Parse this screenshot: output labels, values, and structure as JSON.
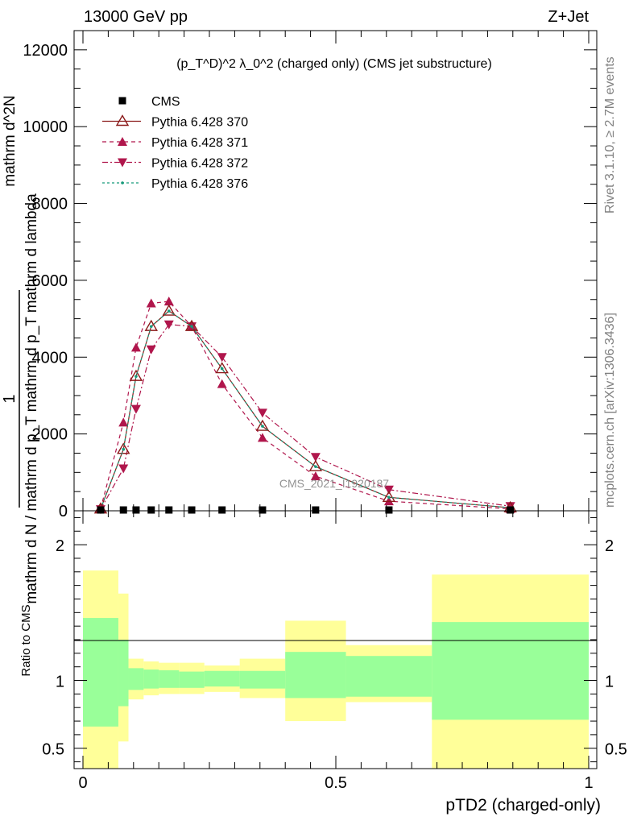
{
  "header": {
    "left": "13000 GeV pp",
    "right": "Z+Jet"
  },
  "side_labels": {
    "rivet": "Rivet 3.1.10, ≥ 2.7M events",
    "mcplots": "mcplots.cern.ch [arXiv:1306.3436]"
  },
  "watermark": "CMS_2021_I1920187",
  "chart_data": {
    "type": "line",
    "title": "(p_T^D)^2 λ_0^2 (charged only) (CMS jet substructure)",
    "xlabel": "pTD2 (charged-only)",
    "ylabel_parts": [
      "1",
      "mathrm d N / mathrm d p_T mathrm d p_T mathrm d lambda",
      "mathrm d^2N"
    ],
    "ylim": [
      0,
      12500
    ],
    "xlim": [
      0,
      1
    ],
    "yticks": [
      0,
      2000,
      4000,
      6000,
      8000,
      10000,
      12000
    ],
    "yticklabels": [
      "0",
      "2000",
      "4000",
      "6000",
      "8000",
      "10000",
      "12000"
    ],
    "x": [
      0.035,
      0.08,
      0.105,
      0.135,
      0.17,
      0.215,
      0.275,
      0.355,
      0.46,
      0.605,
      0.845
    ],
    "legend": [
      {
        "label": "CMS",
        "color": "#000000"
      },
      {
        "label": "Pythia 6.428 370",
        "color": "#8b1a1a"
      },
      {
        "label": "Pythia 6.428 371",
        "color": "#b0164c"
      },
      {
        "label": "Pythia 6.428 372",
        "color": "#b0164c"
      },
      {
        "label": "Pythia 6.428 376",
        "color": "#169a7a"
      }
    ],
    "series": [
      {
        "name": "CMS",
        "values": [
          5,
          8,
          10,
          12,
          15,
          20,
          18,
          10,
          5,
          3,
          1
        ]
      },
      {
        "name": "Pythia 6.428 370",
        "values": [
          50,
          1600,
          3500,
          4800,
          5200,
          4800,
          3700,
          2200,
          1150,
          350,
          80
        ]
      },
      {
        "name": "Pythia 6.428 371",
        "values": [
          60,
          2300,
          4250,
          5400,
          5450,
          4800,
          3300,
          1900,
          900,
          250,
          50
        ]
      },
      {
        "name": "Pythia 6.428 372",
        "values": [
          40,
          1100,
          2650,
          4200,
          4850,
          4800,
          4000,
          2550,
          1400,
          550,
          120
        ]
      },
      {
        "name": "Pythia 6.428 376",
        "values": [
          50,
          1600,
          3500,
          4800,
          5200,
          4800,
          3700,
          2200,
          1150,
          350,
          80
        ]
      }
    ],
    "ratio": {
      "ylabel": "Ratio to CMS",
      "ylim": [
        0.35,
        2.25
      ],
      "yticks": [
        0.5,
        1,
        2
      ],
      "yticklabels": [
        "0.5",
        "1",
        "2"
      ],
      "xticks": [
        0,
        0.5,
        1
      ],
      "xticklabels": [
        "0",
        "0.5",
        "1"
      ],
      "bin_edges": [
        0,
        0.07,
        0.09,
        0.12,
        0.15,
        0.19,
        0.24,
        0.31,
        0.4,
        0.52,
        0.69,
        1.0
      ],
      "green_lo": [
        0.66,
        0.81,
        0.93,
        0.94,
        0.945,
        0.945,
        0.955,
        0.94,
        0.87,
        0.88,
        0.71
      ],
      "green_hi": [
        1.46,
        1.3,
        1.09,
        1.08,
        1.075,
        1.065,
        1.07,
        1.07,
        1.21,
        1.18,
        1.43
      ],
      "yellow_lo": [
        0.05,
        0.55,
        0.86,
        0.89,
        0.9,
        0.9,
        0.915,
        0.87,
        0.7,
        0.84,
        0.05
      ],
      "yellow_hi": [
        1.81,
        1.64,
        1.16,
        1.14,
        1.13,
        1.13,
        1.11,
        1.16,
        1.44,
        1.26,
        1.78
      ]
    }
  }
}
